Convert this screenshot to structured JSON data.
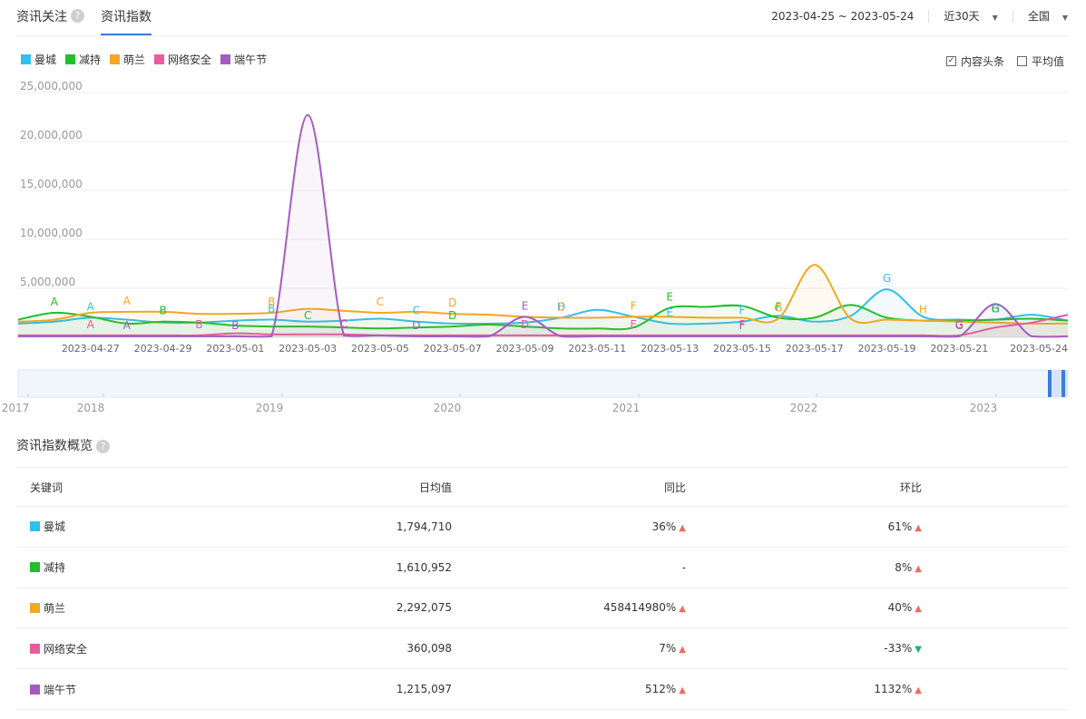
{
  "header": {
    "tabs": [
      {
        "label": "资讯关注",
        "help": "?"
      },
      {
        "label": "资讯指数"
      }
    ],
    "date_range": "2023-04-25 ~ 2023-05-24",
    "period": "近30天",
    "region": "全国"
  },
  "options": {
    "headline_label": "内容头条",
    "headline_checked": "✓",
    "average_label": "平均值"
  },
  "colors": {
    "曼城": "#2ec0ee",
    "减持": "#1fbf2b",
    "萌兰": "#f5a623",
    "网络安全": "#e85c9c",
    "端午节": "#a55cc0",
    "accent": "#3c7ddb"
  },
  "chart_data": {
    "type": "line",
    "x": [
      "2023-04-25",
      "2023-04-26",
      "2023-04-27",
      "2023-04-28",
      "2023-04-29",
      "2023-04-30",
      "2023-05-01",
      "2023-05-02",
      "2023-05-03",
      "2023-05-04",
      "2023-05-05",
      "2023-05-06",
      "2023-05-07",
      "2023-05-08",
      "2023-05-09",
      "2023-05-10",
      "2023-05-11",
      "2023-05-12",
      "2023-05-13",
      "2023-05-14",
      "2023-05-15",
      "2023-05-16",
      "2023-05-17",
      "2023-05-18",
      "2023-05-19",
      "2023-05-20",
      "2023-05-21",
      "2023-05-22",
      "2023-05-23",
      "2023-05-24"
    ],
    "x_tick_labels": [
      "2023-04-27",
      "2023-04-29",
      "2023-05-01",
      "2023-05-03",
      "2023-05-05",
      "2023-05-07",
      "2023-05-09",
      "2023-05-11",
      "2023-05-13",
      "2023-05-15",
      "2023-05-17",
      "2023-05-19",
      "2023-05-21",
      "2023-05-24"
    ],
    "y_tick_labels": [
      "25,000,000",
      "20,000,000",
      "15,000,000",
      "10,000,000",
      "5,000,000"
    ],
    "ylim": [
      0,
      25000000
    ],
    "grid": true,
    "series": [
      {
        "name": "曼城",
        "color": "#2ec0ee",
        "values": [
          1400000,
          1600000,
          2000000,
          1800000,
          1500000,
          1500000,
          1700000,
          1800000,
          1600000,
          1700000,
          1900000,
          1600000,
          1400000,
          1400000,
          1500000,
          2000000,
          2800000,
          2100000,
          1400000,
          1400000,
          1600000,
          2200000,
          1600000,
          2200000,
          4900000,
          2100000,
          1800000,
          1800000,
          2300000,
          1700000
        ],
        "markers": [
          {
            "i": 2,
            "l": "A"
          },
          {
            "i": 7,
            "l": "B"
          },
          {
            "i": 11,
            "l": "C"
          },
          {
            "i": 15,
            "l": "D"
          },
          {
            "i": 18,
            "l": "E"
          },
          {
            "i": 20,
            "l": "F"
          },
          {
            "i": 24,
            "l": "G"
          },
          {
            "i": 27,
            "l": "H"
          }
        ]
      },
      {
        "name": "减持",
        "color": "#1fbf2b",
        "values": [
          1800000,
          2500000,
          2100000,
          1400000,
          1600000,
          1500000,
          1200000,
          1100000,
          1100000,
          1000000,
          900000,
          1000000,
          1100000,
          1300000,
          1100000,
          900000,
          900000,
          1000000,
          3000000,
          3100000,
          3200000,
          2000000,
          2000000,
          3300000,
          2000000,
          1700000,
          1700000,
          1800000,
          1900000,
          1700000
        ],
        "markers": [
          {
            "i": 1,
            "l": "A"
          },
          {
            "i": 4,
            "l": "B"
          },
          {
            "i": 8,
            "l": "C"
          },
          {
            "i": 12,
            "l": "D"
          },
          {
            "i": 18,
            "l": "E"
          },
          {
            "i": 21,
            "l": "F"
          },
          {
            "i": 27,
            "l": "G"
          }
        ]
      },
      {
        "name": "萌兰",
        "color": "#f5a623",
        "values": [
          1600000,
          1800000,
          2500000,
          2600000,
          2600000,
          2400000,
          2400000,
          2500000,
          2900000,
          2700000,
          2500000,
          2600000,
          2400000,
          2300000,
          2100000,
          2000000,
          2000000,
          2100000,
          2100000,
          2000000,
          2000000,
          1900000,
          7400000,
          1900000,
          1800000,
          1700000,
          1600000,
          1500000,
          1400000,
          1400000
        ],
        "markers": [
          {
            "i": 3,
            "l": "A"
          },
          {
            "i": 7,
            "l": "B"
          },
          {
            "i": 10,
            "l": "C"
          },
          {
            "i": 12,
            "l": "D"
          },
          {
            "i": 15,
            "l": "E"
          },
          {
            "i": 17,
            "l": "F"
          },
          {
            "i": 21,
            "l": "G"
          },
          {
            "i": 25,
            "l": "H"
          }
        ]
      },
      {
        "name": "网络安全",
        "color": "#e85c9c",
        "values": [
          200000,
          200000,
          200000,
          200000,
          200000,
          200000,
          400000,
          300000,
          300000,
          300000,
          200000,
          200000,
          200000,
          200000,
          200000,
          200000,
          200000,
          200000,
          200000,
          200000,
          200000,
          200000,
          200000,
          200000,
          200000,
          200000,
          200000,
          1000000,
          1500000,
          2300000
        ],
        "markers": [
          {
            "i": 2,
            "l": "A"
          },
          {
            "i": 5,
            "l": "B"
          },
          {
            "i": 9,
            "l": "C"
          },
          {
            "i": 14,
            "l": "D"
          },
          {
            "i": 17,
            "l": "E"
          },
          {
            "i": 20,
            "l": "F"
          },
          {
            "i": 26,
            "l": "G"
          }
        ]
      },
      {
        "name": "端午节",
        "color": "#a55cc0",
        "values": [
          100000,
          100000,
          100000,
          100000,
          100000,
          100000,
          100000,
          100000,
          22700000,
          200000,
          200000,
          100000,
          100000,
          100000,
          2100000,
          100000,
          100000,
          100000,
          100000,
          100000,
          100000,
          100000,
          100000,
          100000,
          100000,
          100000,
          100000,
          3400000,
          100000,
          100000
        ],
        "markers": [
          {
            "i": 3,
            "l": "A"
          },
          {
            "i": 6,
            "l": "B"
          },
          {
            "i": 9,
            "l": "C"
          },
          {
            "i": 11,
            "l": "D"
          },
          {
            "i": 14,
            "l": "E"
          },
          {
            "i": 20,
            "l": "F"
          },
          {
            "i": 26,
            "l": "G"
          }
        ]
      }
    ],
    "peak_marker": {
      "series": "端午节",
      "label": "B"
    },
    "overview_years": [
      "2017",
      "2018",
      "2019",
      "2020",
      "2021",
      "2022",
      "2023"
    ]
  },
  "overview": {
    "title": "资讯指数概览",
    "headers": [
      "关键词",
      "日均值",
      "同比",
      "环比"
    ],
    "rows": [
      {
        "keyword": "曼城",
        "color": "#2ec0ee",
        "avg": "1,794,710",
        "yoy": "36%",
        "yoy_dir": "up",
        "mom": "61%",
        "mom_dir": "up"
      },
      {
        "keyword": "减持",
        "color": "#1fbf2b",
        "avg": "1,610,952",
        "yoy": "-",
        "yoy_dir": "",
        "mom": "8%",
        "mom_dir": "up"
      },
      {
        "keyword": "萌兰",
        "color": "#f5a623",
        "avg": "2,292,075",
        "yoy": "458414980%",
        "yoy_dir": "up",
        "mom": "40%",
        "mom_dir": "up"
      },
      {
        "keyword": "网络安全",
        "color": "#e85c9c",
        "avg": "360,098",
        "yoy": "7%",
        "yoy_dir": "up",
        "mom": "-33%",
        "mom_dir": "down"
      },
      {
        "keyword": "端午节",
        "color": "#a55cc0",
        "avg": "1,215,097",
        "yoy": "512%",
        "yoy_dir": "up",
        "mom": "1132%",
        "mom_dir": "up"
      }
    ]
  }
}
